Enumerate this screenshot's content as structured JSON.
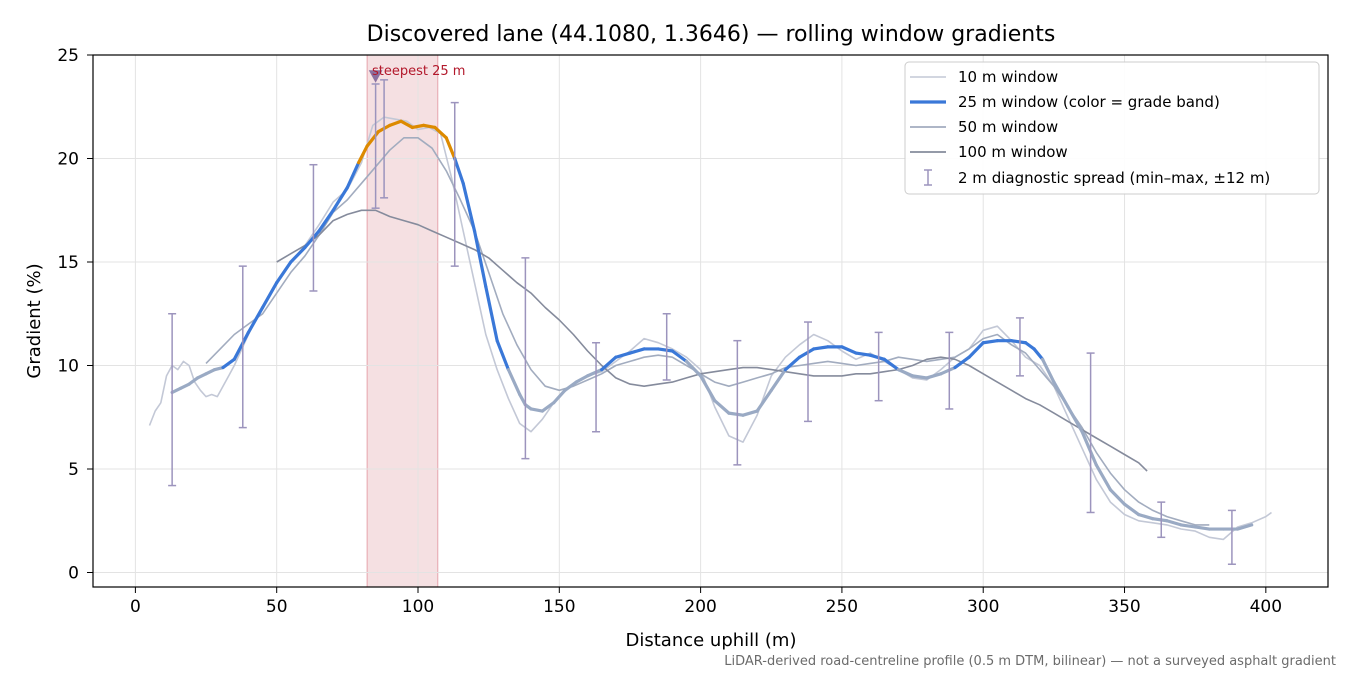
{
  "chart_data": {
    "type": "line",
    "title": "Discovered lane (44.1080, 1.3646) — rolling window gradients",
    "xlabel": "Distance uphill (m)",
    "ylabel": "Gradient (%)",
    "xlim": [
      -15,
      422
    ],
    "ylim": [
      -0.7,
      25
    ],
    "xticks": [
      0,
      50,
      100,
      150,
      200,
      250,
      300,
      350,
      400
    ],
    "yticks": [
      0,
      5,
      10,
      15,
      20,
      25
    ],
    "grid": true,
    "legend_position": "top-right",
    "footnote": "LiDAR-derived road-centreline profile (0.5 m DTM, bilinear) — not a surveyed asphalt gradient",
    "highlight": {
      "x_start": 82,
      "x_end": 107,
      "label": "steepest 25 m",
      "marker_x": 85,
      "marker_y": 24
    },
    "colors": {
      "w10": "#c3c8d6",
      "w25": "#3a78d8",
      "w25_steep": "#dd8a00",
      "w25_gentle": "#9aaac4",
      "w50": "#a2acbf",
      "w100": "#858b9c",
      "errorbar": "#9c94bd",
      "highlight": "#f2d5d8",
      "marker": "#8a70a0"
    },
    "series": [
      {
        "name": "10 m window",
        "x": [
          5,
          7,
          9,
          11,
          13,
          15,
          17,
          19,
          21,
          23,
          25,
          27,
          29,
          31,
          33,
          35,
          40,
          45,
          50,
          55,
          60,
          65,
          70,
          75,
          80,
          84,
          88,
          92,
          96,
          100,
          104,
          108,
          112,
          116,
          120,
          124,
          128,
          132,
          136,
          140,
          144,
          148,
          152,
          156,
          160,
          165,
          170,
          175,
          180,
          185,
          190,
          195,
          200,
          205,
          210,
          215,
          220,
          225,
          230,
          235,
          240,
          245,
          250,
          255,
          260,
          265,
          270,
          275,
          280,
          285,
          290,
          295,
          300,
          305,
          310,
          315,
          320,
          325,
          330,
          335,
          340,
          345,
          350,
          355,
          360,
          365,
          370,
          375,
          380,
          385,
          390,
          395,
          400,
          402
        ],
        "y": [
          7.1,
          7.8,
          8.2,
          9.5,
          10.0,
          9.8,
          10.2,
          10.0,
          9.2,
          8.8,
          8.5,
          8.6,
          8.5,
          9.0,
          9.5,
          10.0,
          11.5,
          12.8,
          14.0,
          15.0,
          15.8,
          16.8,
          17.9,
          18.5,
          19.8,
          21.6,
          22.0,
          21.9,
          21.8,
          21.4,
          21.5,
          21.2,
          19.0,
          16.5,
          14.0,
          11.5,
          9.8,
          8.4,
          7.2,
          6.8,
          7.4,
          8.2,
          8.8,
          9.2,
          9.5,
          9.7,
          10.2,
          10.7,
          11.3,
          11.1,
          10.8,
          10.4,
          9.8,
          8.0,
          6.6,
          6.3,
          7.6,
          9.5,
          10.4,
          11.0,
          11.5,
          11.2,
          10.7,
          10.3,
          10.6,
          10.2,
          9.8,
          9.4,
          9.3,
          9.8,
          10.4,
          10.8,
          11.7,
          11.9,
          11.2,
          10.4,
          10.0,
          9.0,
          7.5,
          6.0,
          4.5,
          3.4,
          2.8,
          2.5,
          2.4,
          2.3,
          2.1,
          2.0,
          1.7,
          1.6,
          2.2,
          2.4,
          2.7,
          2.9
        ]
      },
      {
        "name": "25 m window (color = grade band)",
        "x": [
          13,
          16,
          19,
          22,
          25,
          28,
          31,
          35,
          40,
          45,
          50,
          55,
          60,
          65,
          70,
          75,
          79,
          82,
          86,
          90,
          94,
          98,
          102,
          106,
          110,
          113,
          116,
          120,
          124,
          128,
          132,
          136,
          138,
          140,
          144,
          148,
          152,
          156,
          160,
          165,
          170,
          175,
          180,
          185,
          190,
          195,
          200,
          205,
          210,
          215,
          220,
          225,
          230,
          235,
          240,
          245,
          250,
          255,
          260,
          265,
          270,
          275,
          280,
          285,
          290,
          295,
          300,
          305,
          310,
          315,
          318,
          321,
          325,
          330,
          335,
          340,
          345,
          350,
          355,
          360,
          365,
          370,
          375,
          380,
          385,
          390,
          395
        ],
        "y": [
          8.7,
          8.9,
          9.1,
          9.4,
          9.6,
          9.8,
          9.9,
          10.3,
          11.6,
          12.8,
          14.0,
          15.0,
          15.7,
          16.5,
          17.5,
          18.6,
          19.8,
          20.6,
          21.3,
          21.6,
          21.8,
          21.5,
          21.6,
          21.5,
          21.0,
          20.0,
          18.8,
          16.5,
          13.8,
          11.2,
          9.8,
          8.6,
          8.1,
          7.9,
          7.8,
          8.2,
          8.8,
          9.2,
          9.5,
          9.8,
          10.4,
          10.6,
          10.8,
          10.8,
          10.7,
          10.2,
          9.5,
          8.3,
          7.7,
          7.6,
          7.8,
          8.8,
          9.8,
          10.4,
          10.8,
          10.9,
          10.9,
          10.6,
          10.5,
          10.3,
          9.8,
          9.5,
          9.4,
          9.6,
          9.9,
          10.4,
          11.1,
          11.2,
          11.2,
          11.1,
          10.8,
          10.3,
          9.2,
          8.0,
          6.8,
          5.2,
          4.0,
          3.3,
          2.8,
          2.6,
          2.5,
          2.3,
          2.2,
          2.1,
          2.1,
          2.1,
          2.3
        ]
      },
      {
        "name": "50 m window",
        "x": [
          25,
          30,
          35,
          40,
          45,
          50,
          55,
          60,
          65,
          70,
          75,
          80,
          85,
          90,
          95,
          100,
          105,
          110,
          115,
          120,
          125,
          130,
          135,
          140,
          145,
          150,
          155,
          160,
          165,
          170,
          175,
          180,
          185,
          190,
          195,
          200,
          205,
          210,
          215,
          220,
          225,
          230,
          235,
          240,
          245,
          250,
          255,
          260,
          265,
          270,
          275,
          280,
          285,
          290,
          295,
          300,
          305,
          310,
          315,
          320,
          325,
          330,
          335,
          340,
          345,
          350,
          355,
          360,
          365,
          370,
          375,
          380
        ],
        "y": [
          10.1,
          10.8,
          11.5,
          12.0,
          12.5,
          13.5,
          14.5,
          15.3,
          16.3,
          17.4,
          18.0,
          18.8,
          19.6,
          20.4,
          21.0,
          21.0,
          20.5,
          19.4,
          18.0,
          16.5,
          14.5,
          12.5,
          11.0,
          9.8,
          9.0,
          8.8,
          9.0,
          9.3,
          9.6,
          10.0,
          10.2,
          10.4,
          10.5,
          10.4,
          10.0,
          9.6,
          9.2,
          9.0,
          9.2,
          9.4,
          9.6,
          9.9,
          10.0,
          10.1,
          10.2,
          10.1,
          10.0,
          10.1,
          10.2,
          10.4,
          10.3,
          10.2,
          10.3,
          10.4,
          10.8,
          11.3,
          11.5,
          11.0,
          10.6,
          9.8,
          9.0,
          8.0,
          7.0,
          5.8,
          4.8,
          4.0,
          3.4,
          3.0,
          2.7,
          2.5,
          2.3,
          2.3
        ]
      },
      {
        "name": "100 m window",
        "x": [
          50,
          55,
          60,
          65,
          70,
          75,
          80,
          85,
          90,
          95,
          100,
          105,
          110,
          115,
          120,
          125,
          130,
          135,
          140,
          145,
          150,
          155,
          160,
          165,
          170,
          175,
          180,
          185,
          190,
          195,
          200,
          205,
          210,
          215,
          220,
          225,
          230,
          235,
          240,
          245,
          250,
          255,
          260,
          265,
          270,
          275,
          280,
          285,
          290,
          295,
          300,
          305,
          310,
          315,
          320,
          325,
          330,
          335,
          340,
          345,
          350,
          355,
          358
        ],
        "y": [
          15.0,
          15.4,
          15.8,
          16.3,
          17.0,
          17.3,
          17.5,
          17.5,
          17.2,
          17.0,
          16.8,
          16.5,
          16.2,
          15.9,
          15.6,
          15.2,
          14.6,
          14.0,
          13.5,
          12.8,
          12.2,
          11.5,
          10.7,
          10.0,
          9.4,
          9.1,
          9.0,
          9.1,
          9.2,
          9.4,
          9.6,
          9.7,
          9.8,
          9.9,
          9.9,
          9.8,
          9.7,
          9.6,
          9.5,
          9.5,
          9.5,
          9.6,
          9.6,
          9.7,
          9.8,
          10.0,
          10.3,
          10.4,
          10.3,
          10.0,
          9.6,
          9.2,
          8.8,
          8.4,
          8.1,
          7.7,
          7.3,
          6.9,
          6.5,
          6.1,
          5.7,
          5.3,
          4.9
        ]
      }
    ],
    "errorbars": {
      "name": "2 m diagnostic spread (min–max, ±12 m)",
      "x": [
        13,
        38,
        63,
        85,
        88,
        113,
        138,
        163,
        188,
        213,
        238,
        263,
        288,
        313,
        338,
        363,
        388
      ],
      "low": [
        4.2,
        7.0,
        13.6,
        17.6,
        18.1,
        14.8,
        5.5,
        6.8,
        9.3,
        5.2,
        7.3,
        8.3,
        7.9,
        9.5,
        2.9,
        1.7,
        0.4
      ],
      "high": [
        12.5,
        14.8,
        19.7,
        23.6,
        23.8,
        22.7,
        15.2,
        11.1,
        12.5,
        11.2,
        12.1,
        11.6,
        11.6,
        12.3,
        10.6,
        3.4,
        3.0
      ]
    }
  }
}
